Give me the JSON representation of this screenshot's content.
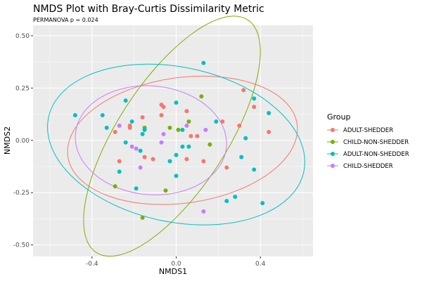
{
  "chart_data": {
    "type": "scatter",
    "title": "NMDS Plot with Bray-Curtis Dissimilarity Metric",
    "subtitle": "PERMANOVA p = 0.024",
    "xlabel": "NMDS1",
    "ylabel": "NMDS2",
    "xlim": [
      -0.68,
      0.65
    ],
    "ylim": [
      -0.555,
      0.55
    ],
    "xticks": [
      {
        "v": -0.4,
        "label": "-0.4"
      },
      {
        "v": 0,
        "label": "0.0"
      },
      {
        "v": 0.4,
        "label": "0.4"
      }
    ],
    "yticks": [
      {
        "v": 0.5,
        "label": "0.50"
      },
      {
        "v": 0.25,
        "label": "0.25"
      },
      {
        "v": 0,
        "label": "0.00"
      },
      {
        "v": -0.25,
        "label": "-0.25"
      },
      {
        "v": -0.5,
        "label": "-0.50"
      }
    ],
    "xminor": [
      -0.6,
      -0.2,
      0.2,
      0.6
    ],
    "yminor": [
      0.375,
      0.125,
      -0.125,
      -0.375
    ],
    "grid": true,
    "legend_title": "Group",
    "legend_position": "right",
    "series": [
      {
        "name": "ADULT-SHEDDER",
        "color": "#F8766D",
        "ellipse": {
          "cx": 0.03,
          "cy": 0.0,
          "a": 0.55,
          "b": 0.3,
          "angle": 8
        },
        "points": [
          [
            -0.07,
            0.17
          ],
          [
            -0.06,
            0.16
          ],
          [
            -0.07,
            0.12
          ],
          [
            -0.16,
            0.11
          ],
          [
            -0.22,
            0.07
          ],
          [
            -0.22,
            0.06
          ],
          [
            -0.29,
            0.04
          ],
          [
            -0.27,
            -0.1
          ],
          [
            -0.15,
            -0.08
          ],
          [
            -0.11,
            -0.09
          ],
          [
            0.32,
            0.24
          ],
          [
            0.37,
            0.16
          ],
          [
            0.05,
            0.14
          ],
          [
            0.22,
            0.09
          ],
          [
            0.3,
            0.07
          ],
          [
            0.07,
            0.02
          ],
          [
            0.1,
            0.02
          ],
          [
            0.44,
            0.04
          ],
          [
            0.05,
            -0.09
          ],
          [
            0.13,
            -0.1
          ],
          [
            0.24,
            -0.13
          ]
        ]
      },
      {
        "name": "CHILD-NON-SHEDDER",
        "color": "#7CAE00",
        "ellipse": {
          "cx": -0.02,
          "cy": 0.02,
          "a": 0.66,
          "b": 0.26,
          "angle": 57
        },
        "points": [
          [
            0.12,
            0.21
          ],
          [
            0.06,
            0.09
          ],
          [
            -0.15,
            0.06
          ],
          [
            -0.03,
            0.06
          ],
          [
            0.01,
            0.05
          ],
          [
            0.16,
            -0.02
          ],
          [
            -0.29,
            -0.22
          ],
          [
            -0.05,
            -0.24
          ],
          [
            -0.16,
            -0.37
          ]
        ]
      },
      {
        "name": "ADULT-NON-SHEDDER",
        "color": "#00BFC4",
        "ellipse": {
          "cx": 0.0,
          "cy": -0.02,
          "a": 0.62,
          "b": 0.37,
          "angle": -12
        },
        "points": [
          [
            -0.48,
            0.12
          ],
          [
            -0.35,
            0.12
          ],
          [
            -0.24,
            0.19
          ],
          [
            -0.21,
            0.09
          ],
          [
            -0.33,
            0.06
          ],
          [
            -0.16,
            0.03
          ],
          [
            -0.15,
            0.05
          ],
          [
            -0.24,
            -0.01
          ],
          [
            -0.17,
            -0.05
          ],
          [
            0.0,
            0.18
          ],
          [
            0.13,
            0.37
          ],
          [
            0.37,
            0.2
          ],
          [
            0.44,
            0.13
          ],
          [
            0.19,
            0.09
          ],
          [
            0.03,
            0.05
          ],
          [
            0.33,
            0.01
          ],
          [
            0.03,
            -0.03
          ],
          [
            0.06,
            -0.03
          ],
          [
            0.0,
            -0.07
          ],
          [
            -0.03,
            -0.1
          ],
          [
            -0.27,
            -0.15
          ],
          [
            0.0,
            -0.17
          ],
          [
            -0.19,
            -0.23
          ],
          [
            0.31,
            -0.08
          ],
          [
            0.37,
            -0.14
          ],
          [
            0.28,
            -0.27
          ],
          [
            0.24,
            -0.29
          ],
          [
            0.41,
            -0.3
          ]
        ]
      },
      {
        "name": "CHILD-SHEDDER",
        "color": "#C77CFF",
        "ellipse": {
          "cx": -0.12,
          "cy": 0.0,
          "a": 0.36,
          "b": 0.26,
          "angle": -5
        },
        "points": [
          [
            -0.27,
            0.07
          ],
          [
            -0.06,
            0.03
          ],
          [
            -0.07,
            -0.01
          ],
          [
            -0.21,
            -0.03
          ],
          [
            -0.19,
            -0.04
          ],
          [
            0.05,
            0.07
          ],
          [
            0.14,
            0.05
          ],
          [
            -0.17,
            -0.13
          ],
          [
            0.13,
            -0.34
          ]
        ]
      }
    ]
  }
}
